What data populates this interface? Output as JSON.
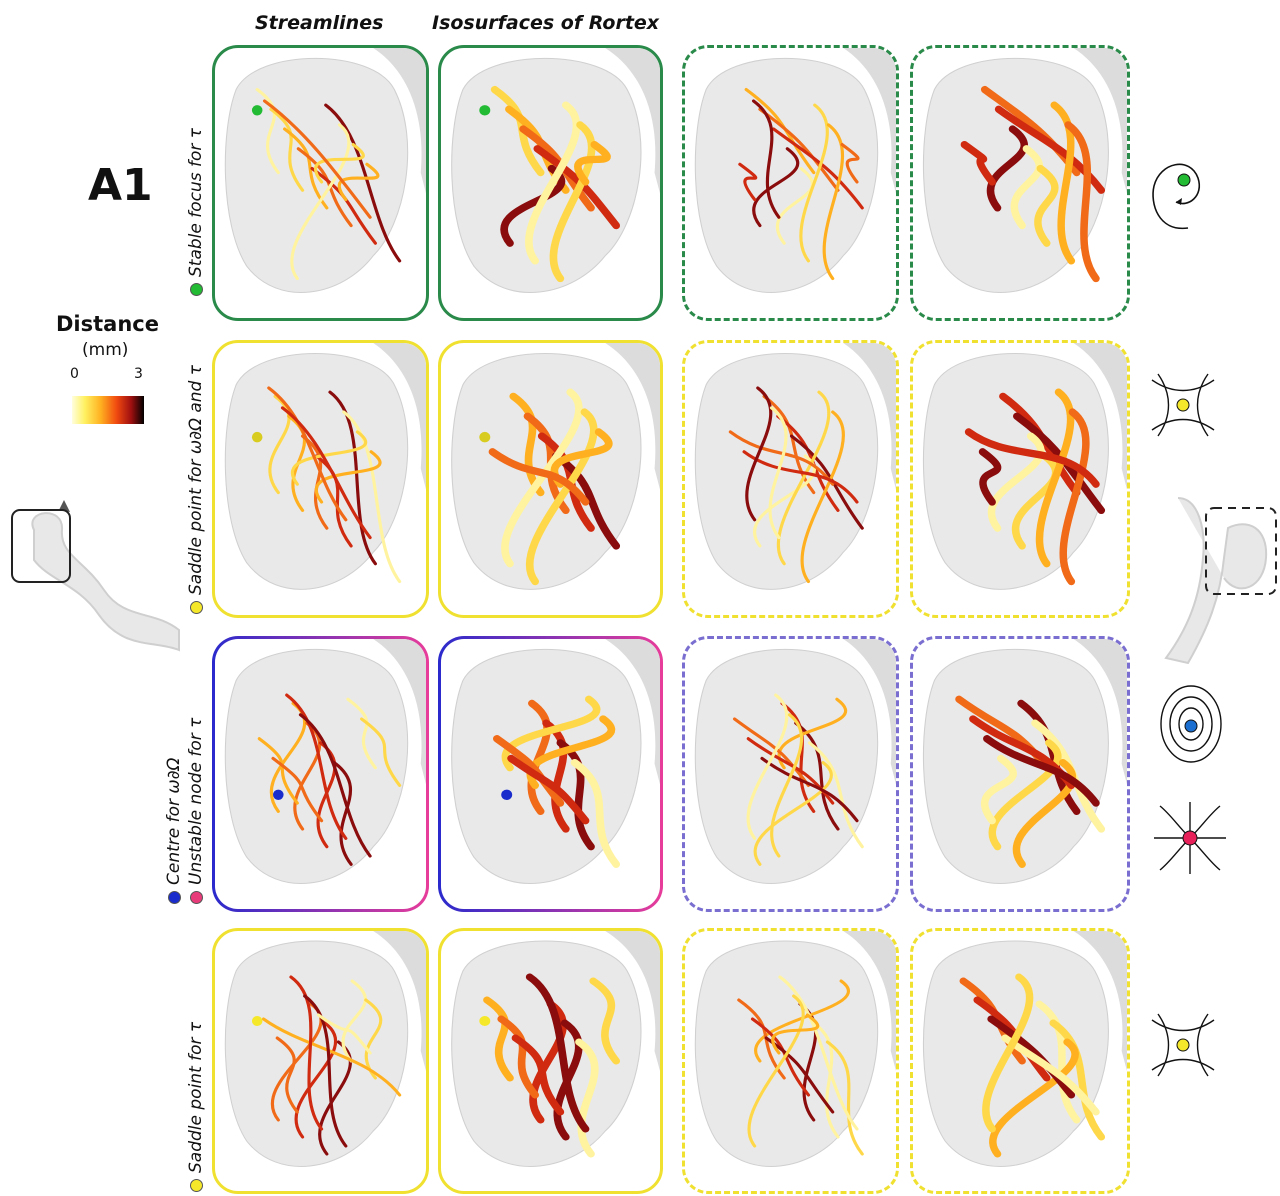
{
  "panel_label": "A1",
  "column_headers": {
    "streamlines": "Streamlines",
    "isosurfaces": "Isosurfaces of Rortex"
  },
  "legend": {
    "title": "Distance",
    "unit": "(mm)",
    "tick_min": "0",
    "tick_max": "3",
    "colormap": [
      "#ffffdd",
      "#fff060",
      "#ffb020",
      "#f04a10",
      "#a01010",
      "#000000"
    ]
  },
  "rows": [
    {
      "label": "Stable focus for τ",
      "dots": [
        "#22bb33"
      ],
      "frame_color": "#2a8a4a",
      "icon": "stable-focus-icon"
    },
    {
      "label": "Saddle point for ω∂Ω and τ",
      "dots": [
        "#f5e82a"
      ],
      "frame_color": "#f0e030",
      "icon": "saddle-point-icon"
    },
    {
      "label_line1": "Centre for ω∂Ω",
      "label_line2": "Unstable node for τ",
      "dots": [
        "#1a2ccc",
        "#e83c7a"
      ],
      "frame_colors": [
        "#2a2acc",
        "#e83c9a"
      ],
      "icons": [
        "centre-icon",
        "unstable-node-icon"
      ]
    },
    {
      "label": "Saddle point for τ",
      "dots": [
        "#f5e82a"
      ],
      "frame_color": "#f0e030",
      "icon": "saddle-point-icon"
    }
  ],
  "colors": {
    "green": "#2a8a4a",
    "yellow": "#f0e030",
    "blue": "#2a2acc",
    "pink": "#e83c9a"
  }
}
